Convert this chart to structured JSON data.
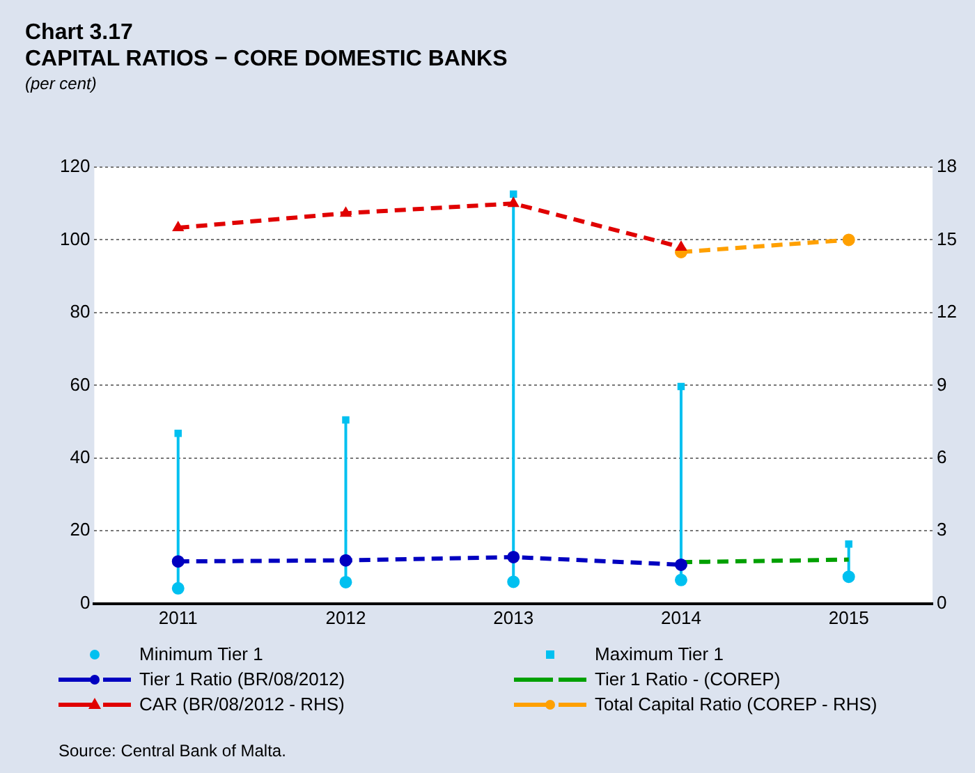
{
  "chart_data": {
    "type": "line",
    "title": "Chart 3.17",
    "subtitle": "CAPITAL RATIOS − CORE DOMESTIC BANKS",
    "ylabel": "(per cent)",
    "categories": [
      "2011",
      "2012",
      "2013",
      "2014",
      "2015"
    ],
    "series": [
      {
        "name": "Minimum Tier 1",
        "type": "scatter",
        "marker": "circle",
        "color": "#00c0f0",
        "values": [
          4.2,
          5.9,
          6.0,
          6.5,
          7.4
        ]
      },
      {
        "name": "Maximum Tier 1",
        "type": "scatter",
        "marker": "square",
        "color": "#00c0f0",
        "values": [
          46.8,
          50.5,
          112.6,
          59.7,
          16.4
        ]
      },
      {
        "name": "Tier 1 Ratio (BR/08/2012)",
        "marker": "circle",
        "color": "#0000c0",
        "values": [
          11.6,
          11.9,
          12.8,
          10.7,
          null
        ]
      },
      {
        "name": "Tier 1 Ratio - (COREP)",
        "marker": "none",
        "color": "#00a000",
        "values": [
          null,
          null,
          null,
          11.4,
          12.1
        ]
      },
      {
        "name": "CAR (BR/08/2012 - RHS)",
        "marker": "triangle",
        "axis": "y2",
        "color": "#e00000",
        "values": [
          15.5,
          16.1,
          16.5,
          14.7,
          null
        ]
      },
      {
        "name": "Total Capital Ratio (COREP - RHS)",
        "marker": "circle",
        "axis": "y2",
        "color": "#ffa000",
        "values": [
          null,
          null,
          null,
          14.5,
          15.0
        ]
      }
    ],
    "ylim": [
      0,
      120
    ],
    "yticks": [
      0,
      20,
      40,
      60,
      80,
      100,
      120
    ],
    "y2lim": [
      0,
      18
    ],
    "y2ticks": [
      0,
      3,
      6,
      9,
      12,
      15,
      18
    ],
    "grid": "y",
    "line_style": "dashed",
    "legend": "bottom",
    "annotations": [
      "Source: Central Bank of Malta."
    ]
  }
}
